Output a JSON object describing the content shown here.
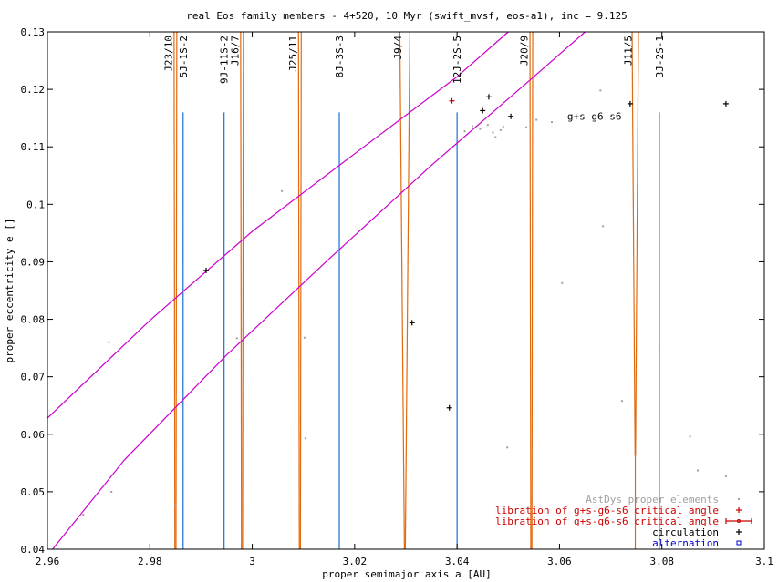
{
  "chart_data": {
    "type": "scatter",
    "title": "real Eos family members - 4+520, 10 Myr (swift_mvsf, eos-a1), inc = 9.125",
    "xlabel": "proper semimajor axis a [AU]",
    "ylabel": "proper eccentricity e []",
    "xlim": [
      2.96,
      3.1
    ],
    "ylim": [
      0.04,
      0.13
    ],
    "x_ticks": [
      {
        "v": 2.96,
        "label": "2.96"
      },
      {
        "v": 2.98,
        "label": "2.98"
      },
      {
        "v": 3.0,
        "label": "3"
      },
      {
        "v": 3.02,
        "label": "3.02"
      },
      {
        "v": 3.04,
        "label": "3.04"
      },
      {
        "v": 3.06,
        "label": "3.06"
      },
      {
        "v": 3.08,
        "label": "3.08"
      },
      {
        "v": 3.1,
        "label": "3.1"
      }
    ],
    "y_ticks": [
      {
        "v": 0.04,
        "label": "0.04"
      },
      {
        "v": 0.05,
        "label": "0.05"
      },
      {
        "v": 0.06,
        "label": "0.06"
      },
      {
        "v": 0.07,
        "label": "0.07"
      },
      {
        "v": 0.08,
        "label": "0.08"
      },
      {
        "v": 0.09,
        "label": "0.09"
      },
      {
        "v": 0.1,
        "label": "0.1"
      },
      {
        "v": 0.11,
        "label": "0.11"
      },
      {
        "v": 0.12,
        "label": "0.12"
      },
      {
        "v": 0.13,
        "label": "0.13"
      }
    ],
    "grid": false,
    "legend_position": "bottom-right",
    "colors": {
      "astdys": "#a0a0a0",
      "libration": "#cc0000",
      "circulation": "#000000",
      "alternation": "#0000cc",
      "three_body": "#1a6fd4",
      "two_body": "#e06a10",
      "secular": "#cc00cc"
    },
    "legend": [
      {
        "label": "AstDys proper elements",
        "marker": "dot",
        "color": "#a0a0a0"
      },
      {
        "label": "libration of g+s-g6-s6 critical angle",
        "marker": "plus",
        "color": "#cc0000"
      },
      {
        "label": "libration of g+s-g6-s6 critical angle",
        "marker": "errorbar",
        "color": "#cc0000"
      },
      {
        "label": "circulation",
        "marker": "plus",
        "color": "#000000"
      },
      {
        "label": "alternation",
        "marker": "square",
        "color": "#0000cc"
      }
    ],
    "series": [
      {
        "name": "AstDys proper elements",
        "points": [
          [
            2.967,
            0.046
          ],
          [
            2.972,
            0.076
          ],
          [
            2.9725,
            0.05
          ],
          [
            2.985,
            0.0475
          ],
          [
            2.997,
            0.0767
          ],
          [
            3.0058,
            0.1023
          ],
          [
            3.0102,
            0.0768
          ],
          [
            3.0104,
            0.0593
          ],
          [
            3.0415,
            0.1127
          ],
          [
            3.043,
            0.1136
          ],
          [
            3.0445,
            0.1131
          ],
          [
            3.046,
            0.1138
          ],
          [
            3.047,
            0.1125
          ],
          [
            3.0475,
            0.1117
          ],
          [
            3.0485,
            0.1129
          ],
          [
            3.049,
            0.1135
          ],
          [
            3.0498,
            0.0577
          ],
          [
            3.0535,
            0.1134
          ],
          [
            3.0555,
            0.1147
          ],
          [
            3.0585,
            0.1143
          ],
          [
            3.0605,
            0.0863
          ],
          [
            3.068,
            0.1198
          ],
          [
            3.0685,
            0.0962
          ],
          [
            3.0722,
            0.0658
          ],
          [
            3.0795,
            0.0748
          ],
          [
            3.0855,
            0.0596
          ],
          [
            3.087,
            0.0537
          ],
          [
            3.0925,
            0.0527
          ]
        ]
      },
      {
        "name": "libration of g+s-g6-s6 critical angle",
        "points": [
          [
            3.039,
            0.118
          ]
        ]
      },
      {
        "name": "circulation",
        "points": [
          [
            2.991,
            0.0885
          ],
          [
            3.0312,
            0.0794
          ],
          [
            3.0385,
            0.0646
          ],
          [
            3.045,
            0.1163
          ],
          [
            3.0462,
            0.1187
          ],
          [
            3.0505,
            0.1153
          ],
          [
            3.0738,
            0.1175
          ],
          [
            3.0925,
            0.1175
          ]
        ]
      },
      {
        "name": "alternation",
        "points": []
      }
    ],
    "three_body_resonances": [
      {
        "label": "5J-1S-2",
        "a": 2.9865
      },
      {
        "label": "9J-11S-2",
        "a": 2.9945
      },
      {
        "label": "8J-3S-3",
        "a": 3.017
      },
      {
        "label": "12J-2S-5",
        "a": 3.04
      },
      {
        "label": "3J-2S-1",
        "a": 3.0795
      }
    ],
    "two_body_resonances": [
      {
        "label": "J23/10",
        "a": 2.985
      },
      {
        "label": "J16/7",
        "a": 2.998
      },
      {
        "label": "J25/11",
        "a": 3.0093
      },
      {
        "label": "J9/4",
        "a": 3.0298
      },
      {
        "label": "J20/9",
        "a": 3.0545
      },
      {
        "label": "J11/5",
        "a": 3.0748
      }
    ],
    "secular_resonance": {
      "label": "g+s-g6-s6",
      "upper_curve": [
        [
          2.96,
          0.0628
        ],
        [
          2.98,
          0.0798
        ],
        [
          3.0,
          0.0953
        ],
        [
          3.02,
          0.1088
        ],
        [
          3.04,
          0.1222
        ],
        [
          3.05,
          0.13
        ]
      ],
      "lower_curve": [
        [
          2.961,
          0.04
        ],
        [
          2.975,
          0.0555
        ],
        [
          2.995,
          0.0738
        ],
        [
          3.015,
          0.0905
        ],
        [
          3.035,
          0.1068
        ],
        [
          3.055,
          0.1222
        ],
        [
          3.065,
          0.13
        ]
      ]
    }
  }
}
